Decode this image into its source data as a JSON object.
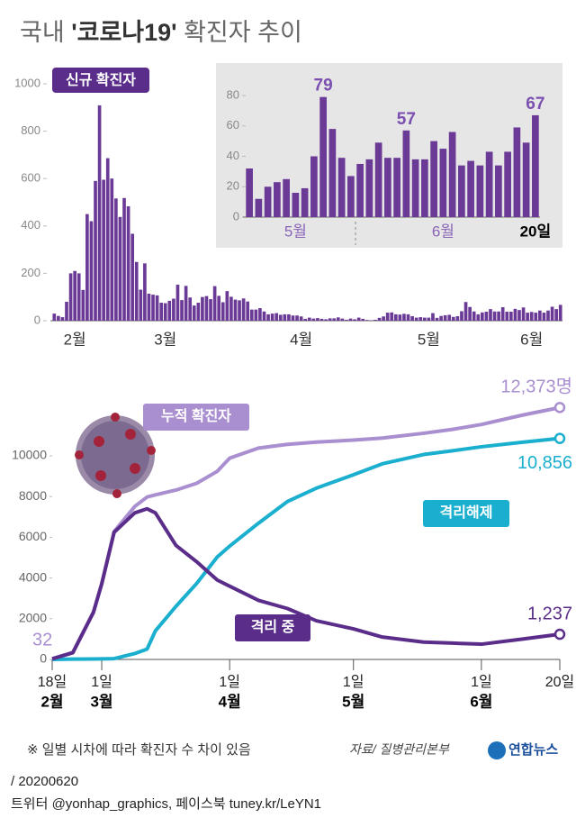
{
  "header": {
    "title_pre": "국내 ",
    "title_bold": "'코로나19'",
    "title_post": " 확진자 추이",
    "badge": "신규 확진자"
  },
  "chart_data": [
    {
      "type": "bar",
      "color": "#6b3a97",
      "categories": [
        null,
        null,
        null,
        null,
        null,
        "2월",
        null,
        null,
        null,
        null,
        null,
        null,
        null,
        null,
        null,
        null,
        null,
        null,
        null,
        null,
        null,
        null,
        null,
        null,
        null,
        null,
        null,
        "3월",
        null,
        null,
        null,
        null,
        null,
        null,
        null,
        null,
        null,
        null,
        null,
        null,
        null,
        null,
        null,
        null,
        null,
        null,
        null,
        null,
        null,
        null,
        null,
        null,
        null,
        null,
        null,
        null,
        null,
        null,
        null,
        null,
        "4월",
        null,
        null,
        null,
        null,
        null,
        null,
        null,
        null,
        null,
        null,
        null,
        null,
        null,
        null,
        null,
        null,
        null,
        null,
        null,
        null,
        null,
        null,
        null,
        null,
        null,
        null,
        null,
        null,
        null,
        null,
        "5월",
        null,
        null,
        null,
        null,
        null,
        null,
        null,
        null,
        null,
        null,
        null,
        null,
        null,
        null,
        null,
        null,
        null,
        null,
        null,
        null,
        null,
        null,
        null,
        null,
        "6월",
        null,
        null,
        null,
        null,
        null,
        null,
        null
      ],
      "values": [
        30,
        20,
        15,
        80,
        200,
        210,
        200,
        130,
        450,
        420,
        590,
        909,
        595,
        686,
        600,
        516,
        438,
        518,
        483,
        367,
        248,
        131,
        242,
        114,
        110,
        107,
        76,
        74,
        84,
        93,
        152,
        87,
        147,
        98,
        64,
        76,
        100,
        104,
        91,
        146,
        105,
        78,
        125,
        101,
        89,
        86,
        94,
        81,
        47,
        47,
        53,
        39,
        27,
        30,
        32,
        25,
        27,
        27,
        22,
        22,
        18,
        8,
        13,
        9,
        11,
        8,
        6,
        10,
        10,
        14,
        9,
        4,
        9,
        6,
        13,
        8,
        3,
        2,
        4,
        12,
        18,
        34,
        35,
        27,
        26,
        29,
        27,
        19,
        13,
        15,
        13,
        13,
        32,
        12,
        20,
        23,
        25,
        16,
        19,
        40,
        79,
        58,
        39,
        27,
        35,
        38,
        49,
        39,
        39,
        57,
        38,
        38,
        50,
        45,
        56,
        34,
        37,
        34,
        43,
        34,
        43,
        59,
        49,
        67
      ],
      "ylim": [
        0,
        1000
      ],
      "yticks": [
        0,
        200,
        400,
        600,
        800,
        1000
      ]
    },
    {
      "type": "bar",
      "color": "#6b3a97",
      "categories": [
        null,
        null,
        null,
        null,
        null,
        "5월",
        null,
        null,
        null,
        null,
        null,
        null,
        null,
        null,
        null,
        null,
        null,
        null,
        null,
        null,
        null,
        "6월",
        null,
        null,
        null,
        null,
        null,
        null,
        null,
        null,
        null,
        "20일"
      ],
      "values": [
        32,
        12,
        20,
        23,
        25,
        16,
        19,
        40,
        79,
        58,
        39,
        27,
        35,
        38,
        49,
        39,
        39,
        57,
        38,
        38,
        50,
        45,
        56,
        34,
        37,
        34,
        43,
        34,
        43,
        59,
        49,
        67
      ],
      "value_labels": [
        null,
        null,
        null,
        null,
        null,
        null,
        null,
        null,
        "79",
        null,
        null,
        null,
        null,
        null,
        null,
        null,
        null,
        "57",
        null,
        null,
        null,
        null,
        null,
        null,
        null,
        null,
        null,
        null,
        null,
        null,
        null,
        "67"
      ],
      "ylim": [
        0,
        80
      ],
      "yticks": [
        0,
        20,
        40,
        60,
        80
      ]
    },
    {
      "type": "line",
      "x": [
        0,
        5,
        10,
        12,
        15,
        20,
        23,
        25,
        30,
        35,
        40,
        43,
        50,
        57,
        64,
        73,
        80,
        90,
        97,
        104,
        114,
        123
      ],
      "xlim": [
        0,
        123
      ],
      "xticks": [
        {
          "value": 0,
          "label": "18일"
        },
        {
          "value": 12,
          "label": "1일"
        },
        {
          "value": 43,
          "label": "1일"
        },
        {
          "value": 73,
          "label": "1일"
        },
        {
          "value": 104,
          "label": "1일"
        },
        {
          "value": 123,
          "label": "20일"
        }
      ],
      "xtick_months": [
        {
          "value": 0,
          "label": "2월"
        },
        {
          "value": 12,
          "label": "3월"
        },
        {
          "value": 43,
          "label": "4월"
        },
        {
          "value": 73,
          "label": "5월"
        },
        {
          "value": 104,
          "label": "6월"
        }
      ],
      "ylim": [
        0,
        12700
      ],
      "yticks": [
        0,
        2000,
        4000,
        6000,
        8000,
        10000
      ],
      "series": [
        {
          "name": "누적 확진자",
          "color": "#a98fd0",
          "values": [
            32,
            346,
            2337,
            3736,
            6284,
            7513,
            7979,
            8086,
            8320,
            8652,
            9241,
            9887,
            10384,
            10564,
            10674,
            10774,
            10874,
            11110,
            11300,
            11541,
            12003,
            12373
          ],
          "value_labels": [
            "32",
            null,
            null,
            null,
            null,
            null,
            null,
            null,
            null,
            null,
            null,
            null,
            null,
            null,
            null,
            null,
            null,
            null,
            null,
            null,
            null,
            "12,373명"
          ]
        },
        {
          "name": "격리해제",
          "color": "#1aafcf",
          "values": [
            0,
            16,
            22,
            30,
            41,
            288,
            510,
            1401,
            2612,
            3730,
            5033,
            5567,
            6694,
            7757,
            8411,
            9072,
            9610,
            10066,
            10250,
            10446,
            10669,
            10856
          ],
          "value_labels": [
            null,
            null,
            null,
            null,
            null,
            null,
            null,
            null,
            null,
            null,
            null,
            null,
            null,
            null,
            null,
            null,
            null,
            null,
            null,
            null,
            null,
            "10,856"
          ]
        },
        {
          "name": "격리 중",
          "color": "#5b2d8a",
          "values": [
            32,
            330,
            2315,
            3706,
            6243,
            7200,
            7400,
            7200,
            5600,
            4800,
            3900,
            3600,
            2900,
            2500,
            1900,
            1500,
            1100,
            850,
            800,
            750,
            1000,
            1237
          ],
          "value_labels": [
            null,
            null,
            null,
            null,
            null,
            null,
            null,
            null,
            null,
            null,
            null,
            null,
            null,
            null,
            null,
            null,
            null,
            null,
            null,
            null,
            null,
            "1,237"
          ]
        }
      ]
    }
  ],
  "footer": {
    "note": "※ 일별 시차에 따라 확진자 수 차이 있음",
    "source": "자료/ 질병관리본부",
    "logo": "연합뉴스",
    "date": "/ 20200620",
    "credits": "트위터 @yonhap_graphics, 페이스북 tuney.kr/LeYN1"
  }
}
